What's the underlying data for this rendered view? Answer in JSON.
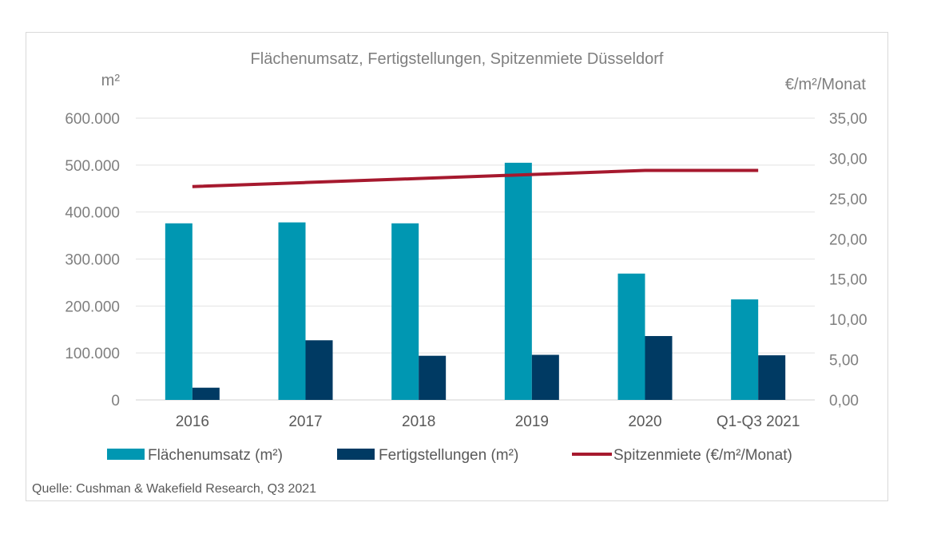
{
  "chart_data": {
    "type": "bar",
    "title": "Flächenumsatz, Fertigstellungen, Spitzenmiete Düsseldorf",
    "ylabel_left": "m²",
    "ylabel_right": "€/m²/Monat",
    "categories": [
      "2016",
      "2017",
      "2018",
      "2019",
      "2020",
      "Q1-Q3 2021"
    ],
    "ylim_left": [
      0,
      600000
    ],
    "ylim_right": [
      0,
      35
    ],
    "yticks_left": [
      {
        "value": 0,
        "label": "0"
      },
      {
        "value": 100000,
        "label": "100.000"
      },
      {
        "value": 200000,
        "label": "200.000"
      },
      {
        "value": 300000,
        "label": "300.000"
      },
      {
        "value": 400000,
        "label": "400.000"
      },
      {
        "value": 500000,
        "label": "500.000"
      },
      {
        "value": 600000,
        "label": "600.000"
      }
    ],
    "yticks_right": [
      {
        "value": 0,
        "label": "0,00"
      },
      {
        "value": 5,
        "label": "5,00"
      },
      {
        "value": 10,
        "label": "10,00"
      },
      {
        "value": 15,
        "label": "15,00"
      },
      {
        "value": 20,
        "label": "20,00"
      },
      {
        "value": 25,
        "label": "25,00"
      },
      {
        "value": 30,
        "label": "30,00"
      },
      {
        "value": 35,
        "label": "35,00"
      }
    ],
    "series": [
      {
        "name": "Flächenumsatz (m²)",
        "kind": "bar",
        "axis": "left",
        "color": "#0097b2",
        "values": [
          376000,
          378000,
          376000,
          505000,
          269000,
          214000
        ]
      },
      {
        "name": "Fertigstellungen (m²)",
        "kind": "bar",
        "axis": "left",
        "color": "#003a63",
        "values": [
          26000,
          127000,
          94000,
          96000,
          136000,
          95000
        ]
      },
      {
        "name": "Spitzenmiete (€/m²/Monat)",
        "kind": "line",
        "axis": "right",
        "color": "#a6192e",
        "values": [
          26.5,
          27.0,
          27.5,
          28.0,
          28.5,
          28.5
        ]
      }
    ],
    "grid": true,
    "legend": "bottom"
  },
  "source": "Quelle: Cushman & Wakefield Research, Q3 2021"
}
